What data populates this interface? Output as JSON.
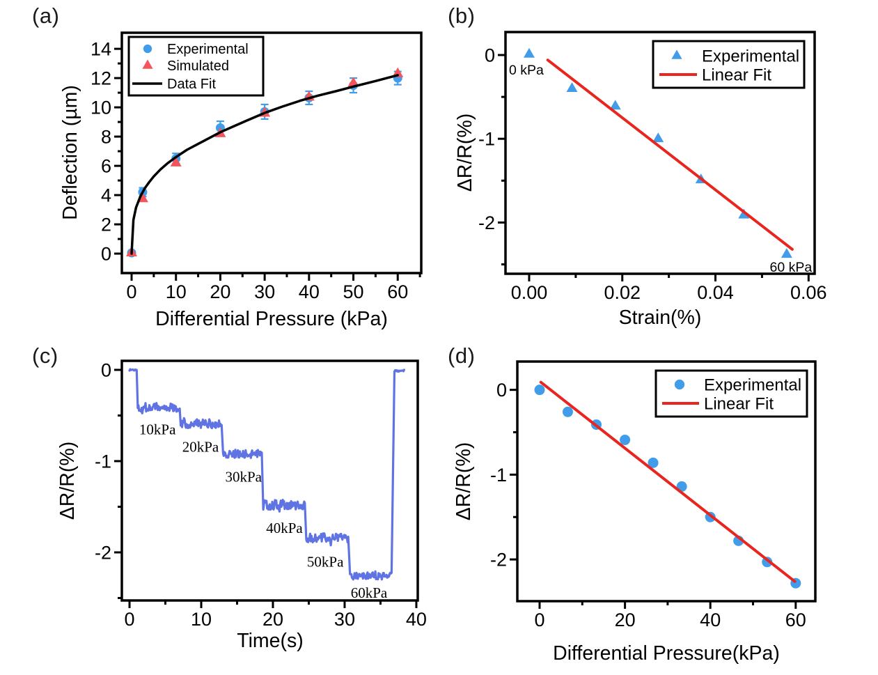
{
  "figure": {
    "background": "#ffffff",
    "spine_color": "#000000"
  },
  "chart_data": [
    {
      "id": "a",
      "panel_label": "(a)",
      "type": "scatter",
      "xlabel": "Differential Pressure (kPa)",
      "ylabel": "Deflection (µm)",
      "xlim": [
        -2.2,
        65.3
      ],
      "ylim": [
        -1.33,
        15.1
      ],
      "xticks": {
        "values": [
          0,
          10,
          20,
          30,
          40,
          50,
          60
        ],
        "labels": [
          "0",
          "10",
          "20",
          "30",
          "40",
          "50",
          "60"
        ],
        "minor": [
          5,
          15,
          25,
          35,
          45,
          55,
          65
        ]
      },
      "yticks": {
        "values": [
          0,
          2,
          4,
          6,
          8,
          10,
          12,
          14
        ],
        "labels": [
          "0",
          "2",
          "4",
          "6",
          "8",
          "10",
          "12",
          "14"
        ],
        "minor": [
          1,
          3,
          5,
          7,
          9,
          11,
          13
        ]
      },
      "grid": false,
      "legend_position": "upper-left",
      "series": [
        {
          "name": "Experimental",
          "type": "scatter",
          "marker": "circle",
          "color": "#419de9",
          "size": 6.5,
          "legend": true,
          "points": [
            [
              0,
              0.05
            ],
            [
              2.5,
              4.2
            ],
            [
              10,
              6.5
            ],
            [
              20,
              8.6
            ],
            [
              30,
              9.7
            ],
            [
              40,
              10.65
            ],
            [
              50,
              11.5
            ],
            [
              60,
              12.0
            ]
          ],
          "yerr": [
            0.12,
            0.3,
            0.35,
            0.45,
            0.5,
            0.45,
            0.5,
            0.45
          ]
        },
        {
          "name": "Simulated",
          "type": "scatter",
          "marker": "triangle",
          "color": "#f4555c",
          "size": 8,
          "legend": true,
          "points": [
            [
              0,
              0.05
            ],
            [
              2.5,
              3.75
            ],
            [
              10,
              6.2
            ],
            [
              20,
              8.2
            ],
            [
              30,
              9.6
            ],
            [
              40,
              10.7
            ],
            [
              50,
              11.65
            ],
            [
              60,
              12.3
            ]
          ]
        },
        {
          "name": "Data Fit",
          "type": "line",
          "color": "#000000",
          "width": 3.5,
          "legend": true,
          "points": [
            [
              0,
              0
            ],
            [
              0.4,
              2.3
            ],
            [
              1,
              3.15
            ],
            [
              2,
              3.93
            ],
            [
              3,
              4.48
            ],
            [
              4,
              4.9
            ],
            [
              5,
              5.28
            ],
            [
              6.5,
              5.75
            ],
            [
              8,
              6.15
            ],
            [
              10,
              6.6
            ],
            [
              12.5,
              7.1
            ],
            [
              15,
              7.5
            ],
            [
              17.5,
              7.9
            ],
            [
              20,
              8.3
            ],
            [
              23,
              8.7
            ],
            [
              26,
              9.1
            ],
            [
              30,
              9.62
            ],
            [
              34,
              10.05
            ],
            [
              38,
              10.45
            ],
            [
              42,
              10.8
            ],
            [
              46,
              11.1
            ],
            [
              50,
              11.42
            ],
            [
              55,
              11.8
            ],
            [
              60,
              12.2
            ]
          ]
        }
      ],
      "annotations": []
    },
    {
      "id": "b",
      "panel_label": "(b)",
      "type": "scatter",
      "xlabel": "Strain(%)",
      "ylabel": "ΔR/R(%)",
      "xlim": [
        -0.00508,
        0.0613
      ],
      "ylim": [
        -2.612,
        0.2746
      ],
      "xticks": {
        "values": [
          0,
          0.02,
          0.04,
          0.06
        ],
        "labels": [
          "0.00",
          "0.02",
          "0.04",
          "0.06"
        ],
        "minor": [
          0.01,
          0.03,
          0.05
        ]
      },
      "yticks": {
        "values": [
          0,
          -1,
          -2
        ],
        "labels": [
          "0",
          "-1",
          "-2"
        ],
        "minor": [
          -0.5,
          -1.5,
          -2.5
        ]
      },
      "grid": false,
      "legend_position": "upper-right",
      "series": [
        {
          "name": "Experimental",
          "type": "scatter",
          "marker": "triangle",
          "color": "#419de9",
          "size": 8,
          "legend": true,
          "points": [
            [
              0,
              0.01
            ],
            [
              0.0092,
              -0.4
            ],
            [
              0.0185,
              -0.61
            ],
            [
              0.0277,
              -1.0
            ],
            [
              0.0369,
              -1.49
            ],
            [
              0.0461,
              -1.91
            ],
            [
              0.0553,
              -2.38
            ]
          ]
        },
        {
          "name": "Linear Fit",
          "type": "line",
          "color": "#e8251f",
          "width": 4,
          "legend": true,
          "points": [
            [
              0.004,
              -0.06
            ],
            [
              0.0565,
              -2.32
            ]
          ]
        }
      ],
      "annotations": [
        {
          "text": "0 kPa",
          "x": -0.0006,
          "y": -0.175,
          "size": 19.5,
          "font": "sans"
        },
        {
          "text": "60 kPa",
          "x": 0.0562,
          "y": -2.53,
          "size": 19.5,
          "font": "sans"
        }
      ]
    },
    {
      "id": "c",
      "panel_label": "(c)",
      "type": "line",
      "xlabel": "Time(s)",
      "ylabel": "ΔR/R(%)",
      "xlim": [
        -1.07,
        40.2
      ],
      "ylim": [
        -2.527,
        0.099
      ],
      "xticks": {
        "values": [
          0,
          10,
          20,
          30,
          40
        ],
        "labels": [
          "0",
          "10",
          "20",
          "30",
          "40"
        ],
        "minor": [
          5,
          15,
          25,
          35
        ]
      },
      "yticks": {
        "values": [
          0,
          -1,
          -2
        ],
        "labels": [
          "0",
          "-1",
          "-2"
        ],
        "minor": [
          -0.5,
          -1.5,
          -2.5
        ]
      },
      "grid": false,
      "legend_position": "none",
      "series": [
        {
          "name": "step response",
          "type": "steps",
          "color": "#5f73e3",
          "width": 3.2,
          "legend": false,
          "segments": [
            [
              0,
              1.0,
              0,
              0.012
            ],
            [
              1.15,
              7.0,
              -0.41,
              0.05
            ],
            [
              7.15,
              12.85,
              -0.59,
              0.05
            ],
            [
              13.05,
              18.45,
              -0.92,
              0.045
            ],
            [
              18.65,
              24.45,
              -1.48,
              0.055
            ],
            [
              24.65,
              30.5,
              -1.84,
              0.05
            ],
            [
              30.75,
              36.55,
              -2.26,
              0.04
            ],
            [
              36.95,
              38.3,
              -0.01,
              0.012
            ]
          ]
        }
      ],
      "annotations": [
        {
          "text": "10kPa",
          "x": 3.9,
          "y": -0.65,
          "size": 21,
          "font": "serif"
        },
        {
          "text": "20kPa",
          "x": 9.9,
          "y": -0.84,
          "size": 21,
          "font": "serif"
        },
        {
          "text": "30kPa",
          "x": 15.9,
          "y": -1.17,
          "size": 21,
          "font": "serif"
        },
        {
          "text": "40kPa",
          "x": 21.6,
          "y": -1.73,
          "size": 21,
          "font": "serif"
        },
        {
          "text": "50kPa",
          "x": 27.3,
          "y": -2.1,
          "size": 21,
          "font": "serif"
        },
        {
          "text": "60kPa",
          "x": 33.4,
          "y": -2.44,
          "size": 21,
          "font": "serif"
        }
      ]
    },
    {
      "id": "d",
      "panel_label": "(d)",
      "type": "scatter",
      "xlabel": "Differential Pressure(kPa)",
      "ylabel": "ΔR/R(%)",
      "xlim": [
        -5.22,
        64.6
      ],
      "ylim": [
        -2.492,
        0.334
      ],
      "xticks": {
        "values": [
          0,
          20,
          40,
          60
        ],
        "labels": [
          "0",
          "20",
          "40",
          "60"
        ],
        "minor": [
          10,
          30,
          50
        ]
      },
      "yticks": {
        "values": [
          0,
          -1,
          -2
        ],
        "labels": [
          "0",
          "-1",
          "-2"
        ],
        "minor": [
          -0.5,
          -1.5
        ]
      },
      "grid": false,
      "legend_position": "upper-right",
      "series": [
        {
          "name": "Experimental",
          "type": "scatter",
          "marker": "circle",
          "color": "#419de9",
          "size": 7.5,
          "legend": true,
          "points": [
            [
              0,
              0
            ],
            [
              6.6,
              -0.26
            ],
            [
              13.3,
              -0.41
            ],
            [
              20,
              -0.59
            ],
            [
              26.6,
              -0.86
            ],
            [
              33.3,
              -1.14
            ],
            [
              40,
              -1.5
            ],
            [
              46.6,
              -1.78
            ],
            [
              53.3,
              -2.03
            ],
            [
              60,
              -2.28
            ]
          ]
        },
        {
          "name": "Linear Fit",
          "type": "line",
          "color": "#e8251f",
          "width": 4,
          "legend": true,
          "points": [
            [
              0.3,
              0.09
            ],
            [
              59.8,
              -2.26
            ]
          ]
        }
      ],
      "annotations": []
    }
  ]
}
